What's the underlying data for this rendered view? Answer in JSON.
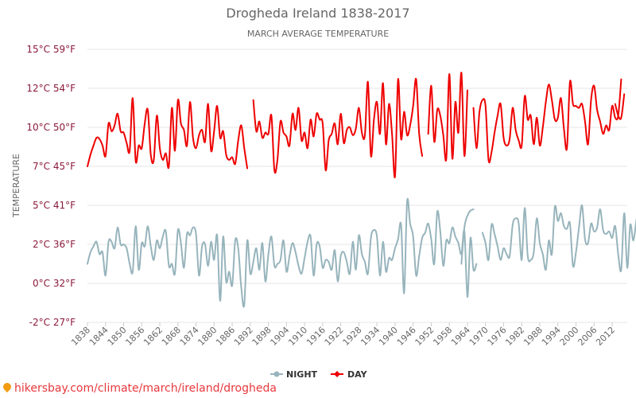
{
  "chart_data": {
    "type": "line",
    "title": "Drogheda Ireland 1838-2017",
    "subtitle": "MARCH AVERAGE TEMPERATURE",
    "ylabel": "TEMPERATURE",
    "xlabel": "",
    "ylim": [
      -2,
      15
    ],
    "xlim": [
      1838,
      2017
    ],
    "y_ticks": [
      {
        "value": 15,
        "label": "15°C 59°F"
      },
      {
        "value": 12,
        "label": "12°C 54°F"
      },
      {
        "value": 10,
        "label": "10°C 50°F"
      },
      {
        "value": 7,
        "label": "7°C 45°F"
      },
      {
        "value": 5,
        "label": "5°C 41°F"
      },
      {
        "value": 2,
        "label": "2°C 36°F"
      },
      {
        "value": 0,
        "label": "0°C 32°F"
      },
      {
        "value": -2,
        "label": "-2°C 27°F"
      }
    ],
    "x_ticks": [
      "1838",
      "1844",
      "1850",
      "1856",
      "1862",
      "1868",
      "1874",
      "1880",
      "1886",
      "1892",
      "1898",
      "1904",
      "1910",
      "1916",
      "1922",
      "1928",
      "1934",
      "1940",
      "1946",
      "1952",
      "1958",
      "1964",
      "1970",
      "1976",
      "1982",
      "1988",
      "1994",
      "2000",
      "2006",
      "2012"
    ],
    "grid": true,
    "legend_position": "bottom-center",
    "series": [
      {
        "name": "NIGHT",
        "color": "#97b4bc",
        "segments": [
          {
            "x_start": 1838,
            "values": [
              1.0,
              1.6,
              1.9,
              2.2,
              1.5,
              1.6,
              0.4,
              2.2,
              2.2,
              1.8,
              3.3,
              2.0,
              2.0,
              1.8,
              1.0,
              0.6,
              3.4,
              0.7,
              2.1,
              1.9,
              3.4,
              1.9,
              1.2,
              2.3,
              1.8,
              2.6,
              3.0,
              0.9,
              1.0,
              0.5,
              3.1,
              2.1,
              0.8,
              2.8,
              2.7,
              3.3,
              2.8,
              0.4,
              1.9,
              2.0,
              0.9,
              2.2,
              1.2,
              2.7,
              -0.9,
              2.6,
              0.1,
              0.6,
              -0.1,
              2.3,
              1.8,
              -0.2,
              -1.1,
              2.3,
              0.5,
              1.1,
              1.8,
              0.7,
              2.1,
              0.1,
              1.5,
              2.6,
              0.9,
              1.0,
              1.2,
              2.3,
              0.6,
              1.4,
              2.1,
              1.6,
              0.9,
              0.5,
              1.3,
              2.2,
              2.6,
              0.4,
              2.0,
              1.9,
              0.8,
              1.2,
              1.1,
              0.7,
              1.7,
              0.1,
              1.4,
              1.6,
              1.1,
              0.5,
              2.2,
              0.7,
              2.7,
              1.5,
              1.1,
              0.5,
              2.5,
              3.1,
              2.6,
              0.4,
              2.2,
              0.6,
              1.3,
              1.2,
              1.8,
              2.4,
              3.5,
              -0.5,
              5.2,
              3.6,
              2.6,
              0.4,
              1.4,
              2.5,
              2.9,
              3.6,
              2.4,
              1.0,
              4.5,
              3.0,
              0.9,
              2.3,
              2.1,
              3.3,
              2.6,
              2.1,
              1.5,
              3.0,
              -0.7,
              2.5,
              0.7,
              1.0
            ]
          },
          {
            "x_start": 1962,
            "values": [
              1.0,
              3.3,
              4.2,
              4.6,
              4.7
            ]
          },
          {
            "x_start": 1969,
            "values": [
              2.9,
              2.1,
              1.2,
              3.5,
              2.8,
              1.9,
              1.2,
              1.8,
              1.5,
              1.4,
              3.5,
              4.0,
              3.6,
              1.2,
              4.8,
              1.4,
              1.2,
              1.6,
              4.0,
              2.1,
              1.5,
              0.7,
              2.3,
              1.5,
              4.9,
              3.8,
              4.4,
              3.4,
              3.2,
              3.6,
              0.9,
              1.6,
              3.3,
              5.0,
              2.4,
              2.1,
              3.6,
              3.0,
              3.3,
              4.7,
              3.1,
              2.8,
              3.0,
              2.5,
              3.4,
              1.5,
              0.7,
              4.4,
              0.8,
              3.5,
              2.3,
              3.8,
              5.3
            ]
          }
        ]
      },
      {
        "name": "DAY",
        "color": "#ee0000",
        "segments": [
          {
            "x_start": 1838,
            "values": [
              7.0,
              7.9,
              8.6,
              9.2,
              9.1,
              8.6,
              7.8,
              10.2,
              9.7,
              10.1,
              10.7,
              9.7,
              9.6,
              8.8,
              8.2,
              11.5,
              7.4,
              8.6,
              8.4,
              10.2,
              10.9,
              7.9,
              7.5,
              10.6,
              8.4,
              7.5,
              8.0,
              7.0,
              11.0,
              8.2,
              11.4,
              10.2,
              9.8,
              8.6,
              11.3,
              9.2,
              8.4,
              9.4,
              9.8,
              8.9,
              11.2,
              8.2,
              9.7,
              11.1,
              9.2,
              9.7,
              7.9,
              7.5,
              7.7,
              7.2,
              9.0,
              10.1,
              8.4,
              6.9
            ]
          },
          {
            "x_start": 1893,
            "values": [
              11.4,
              9.7,
              10.3,
              9.2,
              9.6,
              9.5,
              10.6,
              6.8,
              7.5,
              10.3,
              9.6,
              9.3,
              8.6,
              10.7,
              9.8,
              11.0,
              9.0,
              9.6,
              8.4,
              10.4,
              9.3,
              10.7,
              10.4,
              10.2,
              6.8,
              9.0,
              9.5,
              10.2,
              8.7,
              10.7,
              8.8,
              9.8,
              10.0,
              9.4,
              9.9,
              11.0,
              9.6,
              9.4,
              12.5,
              7.8,
              10.4,
              11.3,
              9.5,
              12.4,
              8.7,
              11.2,
              9.5,
              6.5,
              12.7,
              9.1,
              10.8,
              9.4,
              10.1,
              11.1,
              12.7,
              9.5,
              7.8
            ]
          },
          {
            "x_start": 1951,
            "values": [
              9.5,
              12.2,
              8.9,
              10.9,
              10.6,
              9.4,
              7.6,
              13.1,
              7.6,
              11.3,
              9.6,
              13.2,
              7.8,
              11.9
            ]
          },
          {
            "x_start": 1966,
            "values": [
              11.0,
              8.4,
              10.8,
              11.4,
              11.1,
              7.5,
              8.1,
              9.6,
              10.6,
              11.2,
              9.2,
              8.6,
              9.1,
              11.0,
              9.8,
              9.0,
              8.6,
              11.6,
              10.4,
              10.6,
              8.7,
              10.5,
              8.6,
              10.0,
              11.3,
              12.3,
              11.4,
              10.4,
              10.5,
              11.5,
              9.9,
              8.4,
              12.5,
              11.2,
              11.1,
              11.0,
              11.2,
              10.3,
              8.7,
              11.4,
              12.2,
              10.9,
              10.3,
              9.5,
              10.1,
              9.8,
              11.1,
              10.5,
              10.6,
              12.7
            ]
          },
          {
            "x_start": 2013,
            "values": [
              11.2,
              10.6,
              10.5,
              11.7
            ]
          }
        ]
      }
    ]
  },
  "legend": [
    {
      "label": "NIGHT",
      "color": "#97b4bc"
    },
    {
      "label": "DAY",
      "color": "#ee0000"
    }
  ],
  "watermark": "hikersbay.com/climate/march/ireland/drogheda"
}
